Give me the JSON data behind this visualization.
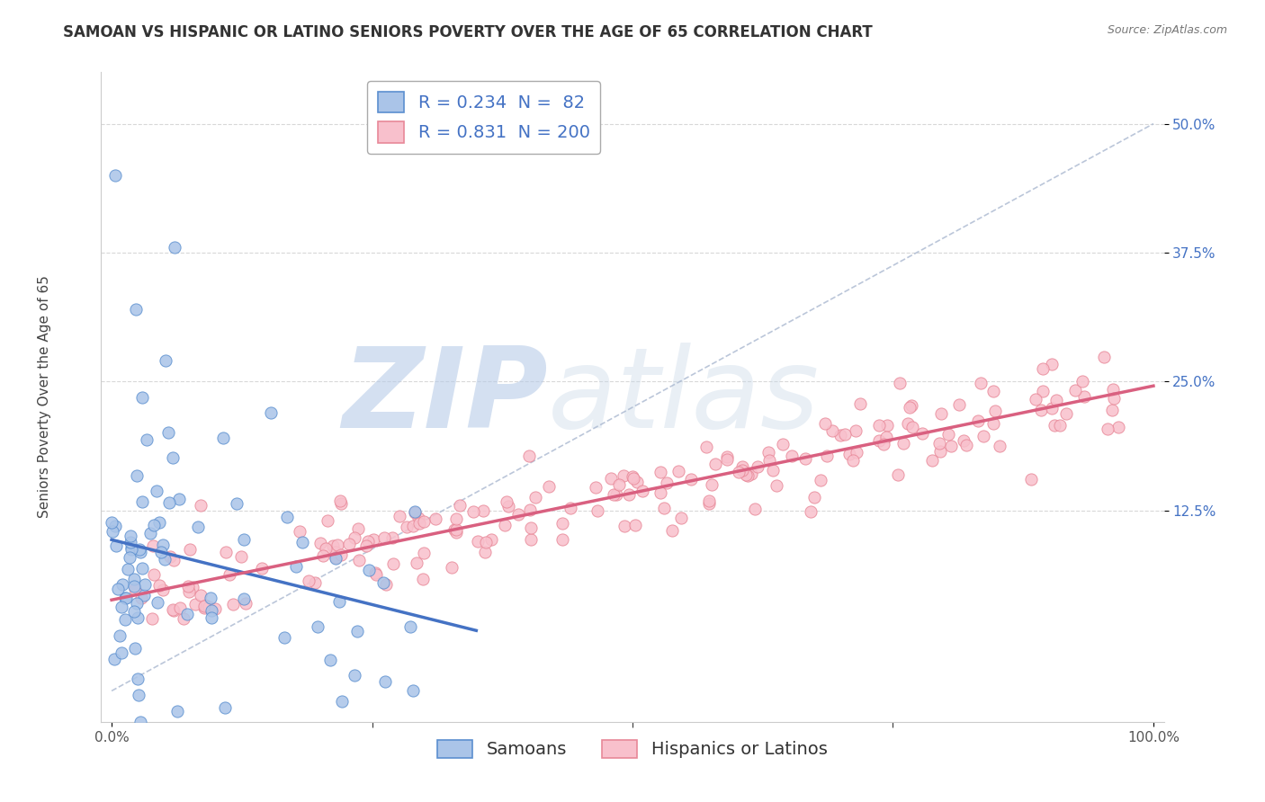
{
  "title": "SAMOAN VS HISPANIC OR LATINO SENIORS POVERTY OVER THE AGE OF 65 CORRELATION CHART",
  "source": "Source: ZipAtlas.com",
  "xtick_labels": [
    "0.0%",
    "100.0%"
  ],
  "xtick_values": [
    0,
    100
  ],
  "ytick_labels": [
    "12.5%",
    "25.0%",
    "37.5%",
    "50.0%"
  ],
  "ytick_values": [
    12.5,
    25.0,
    37.5,
    50.0
  ],
  "xlim": [
    -1,
    101
  ],
  "ylim": [
    -8,
    55
  ],
  "samoan_R": 0.234,
  "samoan_N": 82,
  "hispanic_R": 0.831,
  "hispanic_N": 200,
  "samoan_color": "#aac4e8",
  "samoan_edge_color": "#5b8fcf",
  "samoan_line_color": "#4472c4",
  "hispanic_color": "#f8c0cc",
  "hispanic_edge_color": "#e88898",
  "hispanic_line_color": "#d96080",
  "watermark_zip": "ZIP",
  "watermark_atlas": "atlas",
  "watermark_color": "#c8d8f0",
  "legend_label_samoan": "Samoans",
  "legend_label_hispanic": "Hispanics or Latinos",
  "ylabel": "Seniors Poverty Over the Age of 65",
  "background_color": "#ffffff",
  "plot_bg_color": "#ffffff",
  "grid_color": "#d8d8d8",
  "title_fontsize": 12,
  "axis_label_fontsize": 11,
  "tick_fontsize": 11,
  "legend_fontsize": 14,
  "ytick_color": "#4472c4",
  "xtick_color": "#555555"
}
